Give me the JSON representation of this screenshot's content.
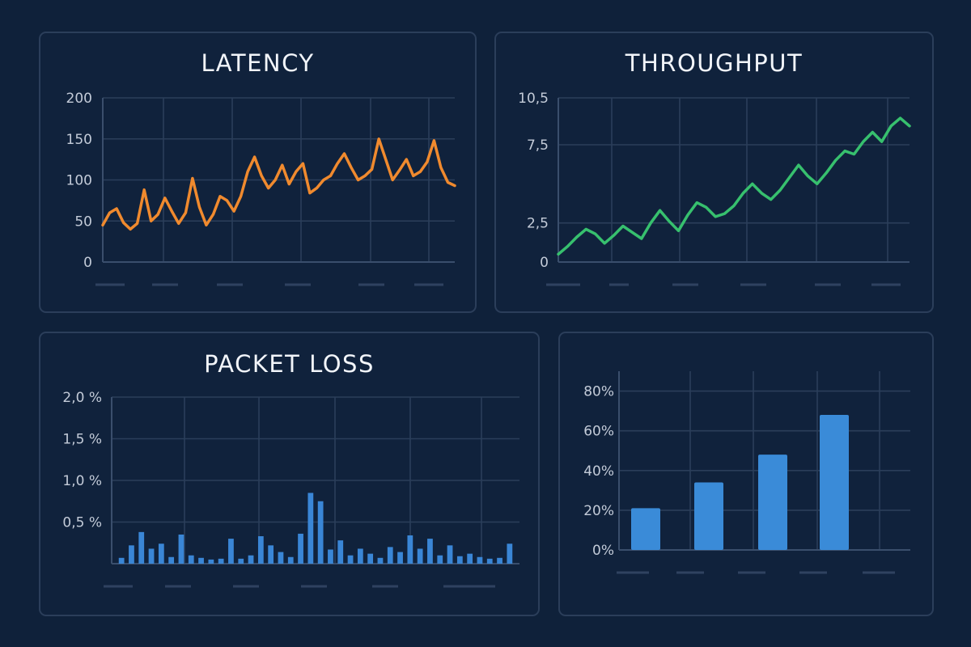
{
  "chart_data": [
    {
      "id": "latency",
      "type": "line",
      "title": "LATENCY",
      "ylim": [
        0,
        200
      ],
      "yticks": [
        0,
        50,
        100,
        150,
        200
      ],
      "ytick_labels": [
        "0",
        "50",
        "100",
        "150",
        "200"
      ],
      "grid": true,
      "color": "#f08a2e",
      "values": [
        45,
        60,
        65,
        48,
        40,
        47,
        88,
        50,
        58,
        78,
        62,
        47,
        60,
        102,
        67,
        45,
        58,
        80,
        75,
        62,
        80,
        110,
        128,
        105,
        90,
        100,
        118,
        95,
        110,
        120,
        84,
        90,
        100,
        105,
        120,
        132,
        115,
        100,
        105,
        113,
        150,
        125,
        100,
        112,
        125,
        105,
        110,
        122,
        148,
        115,
        97,
        93
      ]
    },
    {
      "id": "throughput",
      "type": "line",
      "title": "THROUGHPUT",
      "ylim": [
        0,
        10.5
      ],
      "yticks": [
        0,
        2.5,
        7.5,
        10.5
      ],
      "ytick_labels": [
        "0",
        "2,5",
        "7,5",
        "10,5"
      ],
      "grid": true,
      "color": "#37c06e",
      "values": [
        0.5,
        1,
        1.6,
        2.1,
        1.8,
        1.2,
        1.7,
        2.3,
        1.9,
        1.5,
        2.5,
        3.3,
        2.6,
        2.0,
        3.0,
        3.8,
        3.5,
        2.9,
        3.1,
        3.6,
        4.4,
        5.0,
        4.4,
        4.0,
        4.6,
        5.4,
        6.2,
        5.5,
        5.0,
        5.7,
        6.5,
        7.1,
        6.9,
        7.7,
        8.3,
        7.7,
        8.7,
        9.2,
        8.7
      ]
    },
    {
      "id": "packet_loss",
      "type": "bar",
      "title": "PACKET LOSS",
      "ylim": [
        0,
        2.0
      ],
      "yticks": [
        0.5,
        1.0,
        1.5,
        2.0
      ],
      "ytick_labels": [
        "0,5 %",
        "1,0 %",
        "1,5 %",
        "2,0 %"
      ],
      "grid": true,
      "color": "#3a86d6",
      "values": [
        0.07,
        0.22,
        0.38,
        0.18,
        0.24,
        0.08,
        0.35,
        0.1,
        0.07,
        0.05,
        0.06,
        0.3,
        0.06,
        0.1,
        0.33,
        0.22,
        0.14,
        0.08,
        0.36,
        0.85,
        0.75,
        0.17,
        0.28,
        0.1,
        0.18,
        0.12,
        0.07,
        0.2,
        0.14,
        0.34,
        0.18,
        0.3,
        0.1,
        0.22,
        0.09,
        0.12,
        0.08,
        0.06,
        0.07,
        0.24
      ]
    },
    {
      "id": "utilization",
      "type": "bar",
      "title": "",
      "ylim": [
        0,
        90
      ],
      "yticks": [
        0,
        20,
        40,
        60,
        80
      ],
      "ytick_labels": [
        "0%",
        "20%",
        "40%",
        "60%",
        "80%"
      ],
      "grid": true,
      "color": "#3a8bd8",
      "values": [
        21,
        34,
        48,
        68
      ]
    }
  ]
}
